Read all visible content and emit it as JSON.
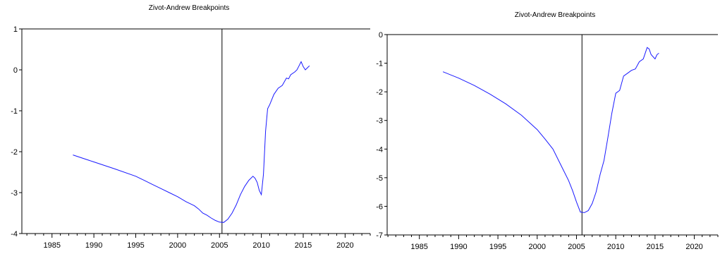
{
  "chart_data": [
    {
      "type": "line",
      "title": "Zivot-Andrew Breakpoints",
      "xlabel": "",
      "ylabel": "",
      "xlim": [
        1981.4,
        2023.0
      ],
      "ylim": [
        -4,
        1
      ],
      "xticks": [
        1985,
        1990,
        1995,
        2000,
        2005,
        2010,
        2015,
        2020
      ],
      "yticks": [
        1,
        0,
        -1,
        -2,
        -3,
        -4
      ],
      "grid": false,
      "breakpoint": 2005.3,
      "series": [
        {
          "color": "#1a1aff",
          "x": [
            1987.5,
            1990,
            1992.5,
            1995,
            1996,
            1997,
            1998,
            1999,
            2000,
            2001,
            2002,
            2002.5,
            2003,
            2003.5,
            2004,
            2004.5,
            2005,
            2005.5,
            2006,
            2006.5,
            2007,
            2007.5,
            2008,
            2008.5,
            2009,
            2009.25,
            2009.5,
            2009.75,
            2010,
            2010.25,
            2010.5,
            2010.75,
            2011,
            2011.5,
            2012,
            2012.5,
            2013,
            2013.25,
            2013.5,
            2014,
            2014.25,
            2014.5,
            2014.75,
            2015,
            2015.25,
            2015.5,
            2015.75
          ],
          "y": [
            -2.08,
            -2.25,
            -2.42,
            -2.6,
            -2.7,
            -2.8,
            -2.9,
            -3.0,
            -3.1,
            -3.22,
            -3.32,
            -3.4,
            -3.5,
            -3.55,
            -3.62,
            -3.68,
            -3.72,
            -3.73,
            -3.65,
            -3.5,
            -3.3,
            -3.05,
            -2.85,
            -2.7,
            -2.6,
            -2.65,
            -2.75,
            -2.95,
            -3.05,
            -2.55,
            -1.5,
            -0.95,
            -0.85,
            -0.6,
            -0.45,
            -0.38,
            -0.2,
            -0.22,
            -0.12,
            -0.05,
            0.0,
            0.1,
            0.2,
            0.08,
            0.0,
            0.05,
            0.1
          ]
        }
      ]
    },
    {
      "type": "line",
      "title": "Zivot-Andrew Breakpoints",
      "xlabel": "",
      "ylabel": "",
      "xlim": [
        1980.9,
        2023.0
      ],
      "ylim": [
        -7,
        0
      ],
      "xticks": [
        1985,
        1990,
        1995,
        2000,
        2005,
        2010,
        2015,
        2020
      ],
      "yticks": [
        0,
        -1,
        -2,
        -3,
        -4,
        -5,
        -6,
        -7
      ],
      "grid": false,
      "breakpoint": 2005.7,
      "series": [
        {
          "color": "#1a1aff",
          "x": [
            1988,
            1990,
            1992,
            1994,
            1996,
            1998,
            2000,
            2001,
            2002,
            2003,
            2004,
            2004.5,
            2005,
            2005.5,
            2006,
            2006.5,
            2007,
            2007.5,
            2008,
            2008.5,
            2009,
            2009.5,
            2010,
            2010.5,
            2011,
            2011.5,
            2012,
            2012.5,
            2013,
            2013.5,
            2014,
            2014.25,
            2014.5,
            2015,
            2015.25,
            2015.5
          ],
          "y": [
            -1.3,
            -1.52,
            -1.78,
            -2.08,
            -2.42,
            -2.82,
            -3.32,
            -3.65,
            -4.0,
            -4.55,
            -5.1,
            -5.45,
            -5.85,
            -6.2,
            -6.22,
            -6.15,
            -5.9,
            -5.5,
            -4.9,
            -4.4,
            -3.6,
            -2.75,
            -2.05,
            -1.95,
            -1.45,
            -1.35,
            -1.25,
            -1.2,
            -0.95,
            -0.85,
            -0.45,
            -0.5,
            -0.7,
            -0.85,
            -0.7,
            -0.65
          ]
        }
      ]
    }
  ]
}
